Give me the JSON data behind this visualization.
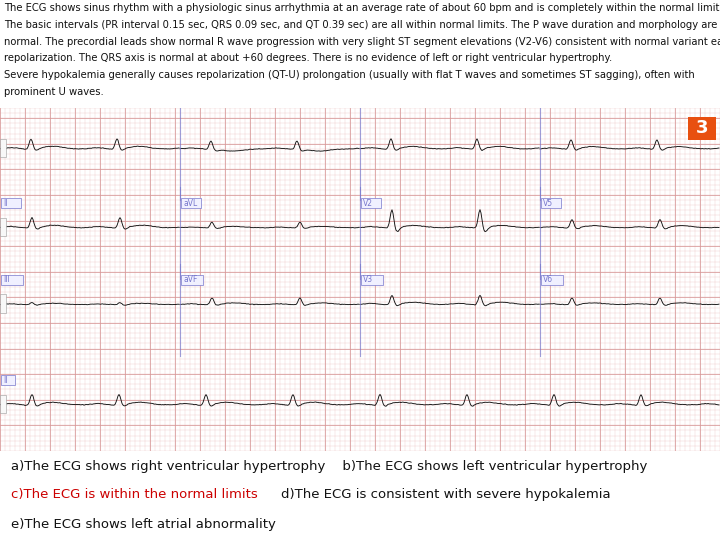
{
  "background_color": "#ffffff",
  "ecg_bg_color": "#f5d5d5",
  "grid_minor_color": "#e8b0b0",
  "grid_major_color": "#d89898",
  "ecg_line_color": "#111111",
  "divider_color": "#7777cc",
  "label_box_color": "#aaaadd",
  "text_block_line1": "The ECG shows sinus rhythm with a physiologic sinus arrhythmia at an average rate of about 60 bpm and is completely within the normal limits.",
  "text_block_line2": "The basic intervals (PR interval 0.15 sec, QRS 0.09 sec, and QT 0.39 sec) are all within normal limits. The P wave duration and morphology are",
  "text_block_line3": "normal. The precordial leads show normal R wave progression with very slight ST segment elevations (V2-V6) consistent with normal variant early",
  "text_block_line4": "repolarization. The QRS axis is normal at about +60 degrees. There is no evidence of left or right ventricular hypertrophy.",
  "text_block_line5": "Severe hypokalemia generally causes repolarization (QT-U) prolongation (usually with flat T waves and sometimes ST sagging), often with",
  "text_block_line6": "prominent U waves.",
  "number_badge": "3",
  "number_badge_color": "#e85010",
  "number_badge_text_color": "#ffffff",
  "row1_labels": [
    "",
    "",
    "",
    ""
  ],
  "row2_labels": [
    "II",
    "aVL",
    "V2",
    "V5"
  ],
  "row3_labels": [
    "III",
    "aVF",
    "V3",
    "V6"
  ],
  "row4_label": "II",
  "white_bg_color": "#ffffff",
  "text_fontsize": 7.2,
  "answer_fontsize": 9.5
}
